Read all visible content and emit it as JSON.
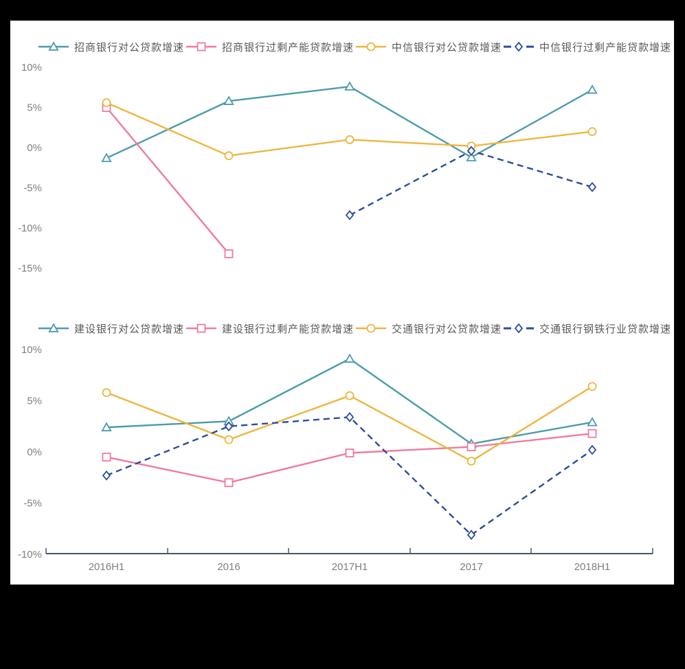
{
  "palette": {
    "teal": "#4A9BAC",
    "pink": "#F07A9E",
    "yellow": "#EDB63E",
    "blue": "#2B4C9D",
    "axis_line": "#44546A",
    "tick_text": "#7F7F7F",
    "legend_text": "#595959",
    "background": "#FFFFFF",
    "frame_border": "#000000"
  },
  "chart_data": [
    {
      "type": "line",
      "title": "",
      "xlabel": "",
      "ylabel": "",
      "legend_position": "top",
      "grid": false,
      "show_xaxis": false,
      "categories": [
        "2016H1",
        "2016",
        "2017H1",
        "2017",
        "2018H1"
      ],
      "ylim": [
        -15,
        10
      ],
      "ytick_values": [
        10,
        5,
        0,
        -5,
        -10,
        -15
      ],
      "ytick_labels": [
        "10%",
        "5%",
        "0%",
        "-5%",
        "-10%",
        "-15%"
      ],
      "series": [
        {
          "name": "招商银行对公贷款增速",
          "color": "#4A9BAC",
          "marker": "triangle",
          "line_style": "solid",
          "values": [
            -1.3,
            5.8,
            7.6,
            -1.2,
            7.2
          ]
        },
        {
          "name": "招商银行过剩产能贷款增速",
          "color": "#F07A9E",
          "marker": "square",
          "line_style": "solid",
          "values": [
            5.0,
            -13.2,
            null,
            null,
            null
          ]
        },
        {
          "name": "中信银行对公贷款增速",
          "color": "#EDB63E",
          "marker": "circle",
          "line_style": "solid",
          "values": [
            5.6,
            -1.0,
            1.0,
            0.2,
            2.0
          ]
        },
        {
          "name": "中信银行过剩产能贷款增速",
          "color": "#2B4C9D",
          "marker": "diamond",
          "line_style": "dashed",
          "values": [
            null,
            null,
            -8.4,
            -0.4,
            -4.9
          ]
        }
      ]
    },
    {
      "type": "line",
      "title": "",
      "xlabel": "",
      "ylabel": "",
      "legend_position": "top",
      "grid": false,
      "show_xaxis": true,
      "categories": [
        "2016H1",
        "2016",
        "2017H1",
        "2017",
        "2018H1"
      ],
      "ylim": [
        -10,
        10
      ],
      "ytick_values": [
        10,
        5,
        0,
        -5,
        -10
      ],
      "ytick_labels": [
        "10%",
        "5%",
        "0%",
        "-5%",
        "-10%"
      ],
      "series": [
        {
          "name": "建设银行对公贷款增速",
          "color": "#4A9BAC",
          "marker": "triangle",
          "line_style": "solid",
          "values": [
            2.4,
            3.0,
            9.1,
            0.8,
            2.9
          ]
        },
        {
          "name": "建设银行过剩产能贷款增速",
          "color": "#F07A9E",
          "marker": "square",
          "line_style": "solid",
          "values": [
            -0.5,
            -3.0,
            -0.1,
            0.5,
            1.8
          ]
        },
        {
          "name": "交通银行对公贷款增速",
          "color": "#EDB63E",
          "marker": "circle",
          "line_style": "solid",
          "values": [
            5.8,
            1.2,
            5.5,
            -0.9,
            6.4
          ]
        },
        {
          "name": "交通银行钢铁行业贷款增速",
          "color": "#2B4C9D",
          "marker": "diamond",
          "line_style": "dashed",
          "values": [
            -2.3,
            2.5,
            3.4,
            -8.1,
            0.2
          ]
        }
      ]
    }
  ]
}
